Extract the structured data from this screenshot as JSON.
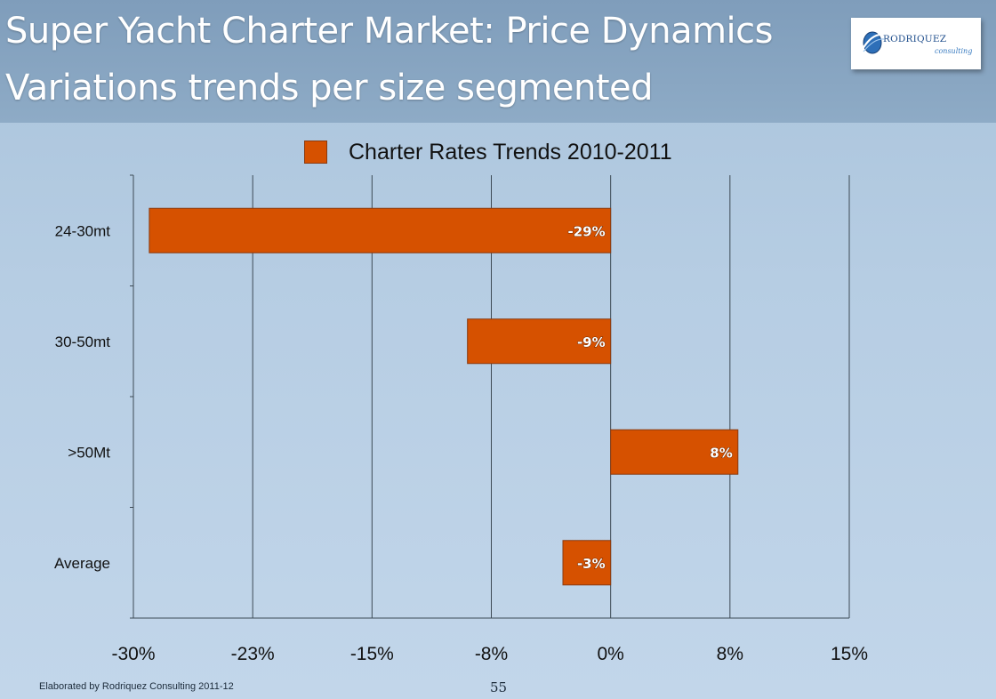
{
  "slide": {
    "title_line1": "Super Yacht Charter Market: Price Dynamics",
    "title_line2": "Variations trends per size segmented",
    "footer_note": "Elaborated by Rodriquez Consulting 2011-12",
    "page_number": "55"
  },
  "logo": {
    "name": "RODRIQUEZ",
    "sub": "consulting"
  },
  "chart_data": {
    "type": "bar",
    "orientation": "horizontal",
    "title": "",
    "xlabel": "",
    "ylabel": "",
    "categories": [
      "24-30mt",
      "30-50mt",
      ">50Mt",
      "Average"
    ],
    "series": [
      {
        "name": "Charter Rates Trends 2010-2011",
        "values": [
          -0.29,
          -0.09,
          0.08,
          -0.03
        ],
        "labels": [
          "-29%",
          "-9%",
          "8%",
          "-3%"
        ],
        "color": "#d65100"
      }
    ],
    "xlim": [
      -0.3,
      0.15
    ],
    "x_ticks": [
      -0.3,
      -0.225,
      -0.15,
      -0.075,
      0,
      0.075,
      0.15
    ],
    "x_tick_labels": [
      "-30%",
      "-23%",
      "-15%",
      "-8%",
      "0%",
      "8%",
      "15%"
    ],
    "grid": "vertical",
    "legend": "top"
  }
}
